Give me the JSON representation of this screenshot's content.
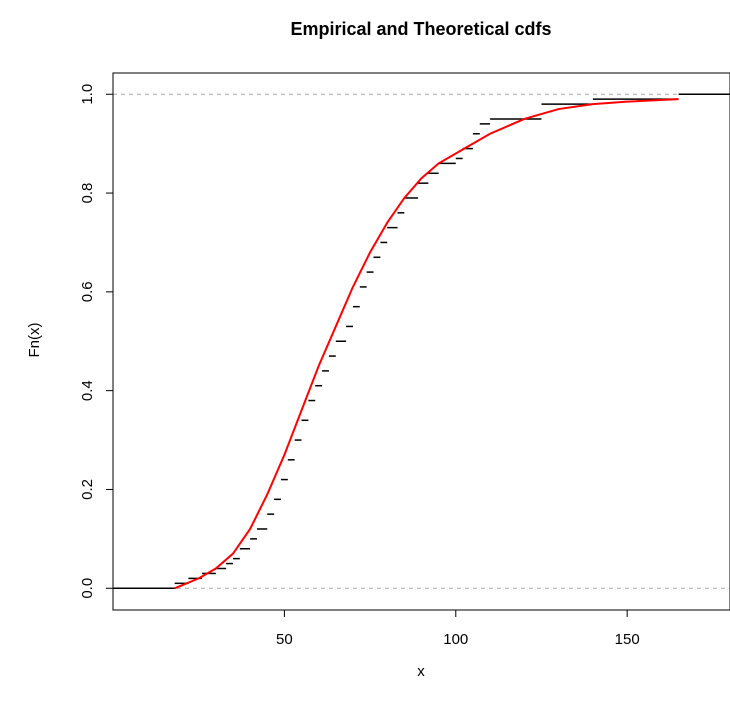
{
  "chart_data": {
    "type": "line",
    "title": "Empirical and Theoretical cdfs",
    "xlabel": "x",
    "ylabel": "Fn(x)",
    "xlim": [
      0,
      180
    ],
    "ylim": [
      -0.044,
      1.043
    ],
    "xticks": [
      50,
      100,
      150
    ],
    "yticks": [
      {
        "value": 0,
        "label": "0.0"
      },
      {
        "value": 0.2,
        "label": "0.2"
      },
      {
        "value": 0.4,
        "label": "0.4"
      },
      {
        "value": 0.6,
        "label": "0.6"
      },
      {
        "value": 0.8,
        "label": "0.8"
      },
      {
        "value": 1,
        "label": "1.0"
      }
    ],
    "hlines": [
      0,
      1
    ],
    "series": [
      {
        "color": "#000000",
        "step": true,
        "x": [
          0,
          18,
          22,
          26,
          30,
          33,
          35,
          37,
          40,
          42,
          45,
          47,
          49,
          51,
          53,
          55,
          57,
          59,
          61,
          63,
          65,
          68,
          70,
          72,
          74,
          76,
          78,
          80,
          83,
          85,
          89,
          92,
          95,
          100,
          102,
          105,
          107,
          110,
          125,
          140,
          165
        ],
        "values": [
          0,
          0.01,
          0.02,
          0.03,
          0.04,
          0.05,
          0.06,
          0.08,
          0.1,
          0.12,
          0.15,
          0.18,
          0.22,
          0.26,
          0.3,
          0.34,
          0.38,
          0.41,
          0.44,
          0.47,
          0.5,
          0.53,
          0.57,
          0.61,
          0.64,
          0.67,
          0.7,
          0.73,
          0.76,
          0.79,
          0.82,
          0.84,
          0.86,
          0.87,
          0.89,
          0.92,
          0.94,
          0.95,
          0.98,
          0.99,
          1
        ]
      },
      {
        "color": "#ff0000",
        "step": false,
        "x": [
          18,
          25,
          30,
          35,
          40,
          45,
          50,
          55,
          60,
          65,
          70,
          75,
          80,
          85,
          90,
          95,
          100,
          110,
          120,
          130,
          140,
          150,
          165
        ],
        "values": [
          0,
          0.02,
          0.04,
          0.07,
          0.12,
          0.19,
          0.27,
          0.36,
          0.45,
          0.53,
          0.61,
          0.68,
          0.74,
          0.79,
          0.83,
          0.86,
          0.88,
          0.92,
          0.95,
          0.97,
          0.98,
          0.985,
          0.99
        ]
      }
    ]
  }
}
